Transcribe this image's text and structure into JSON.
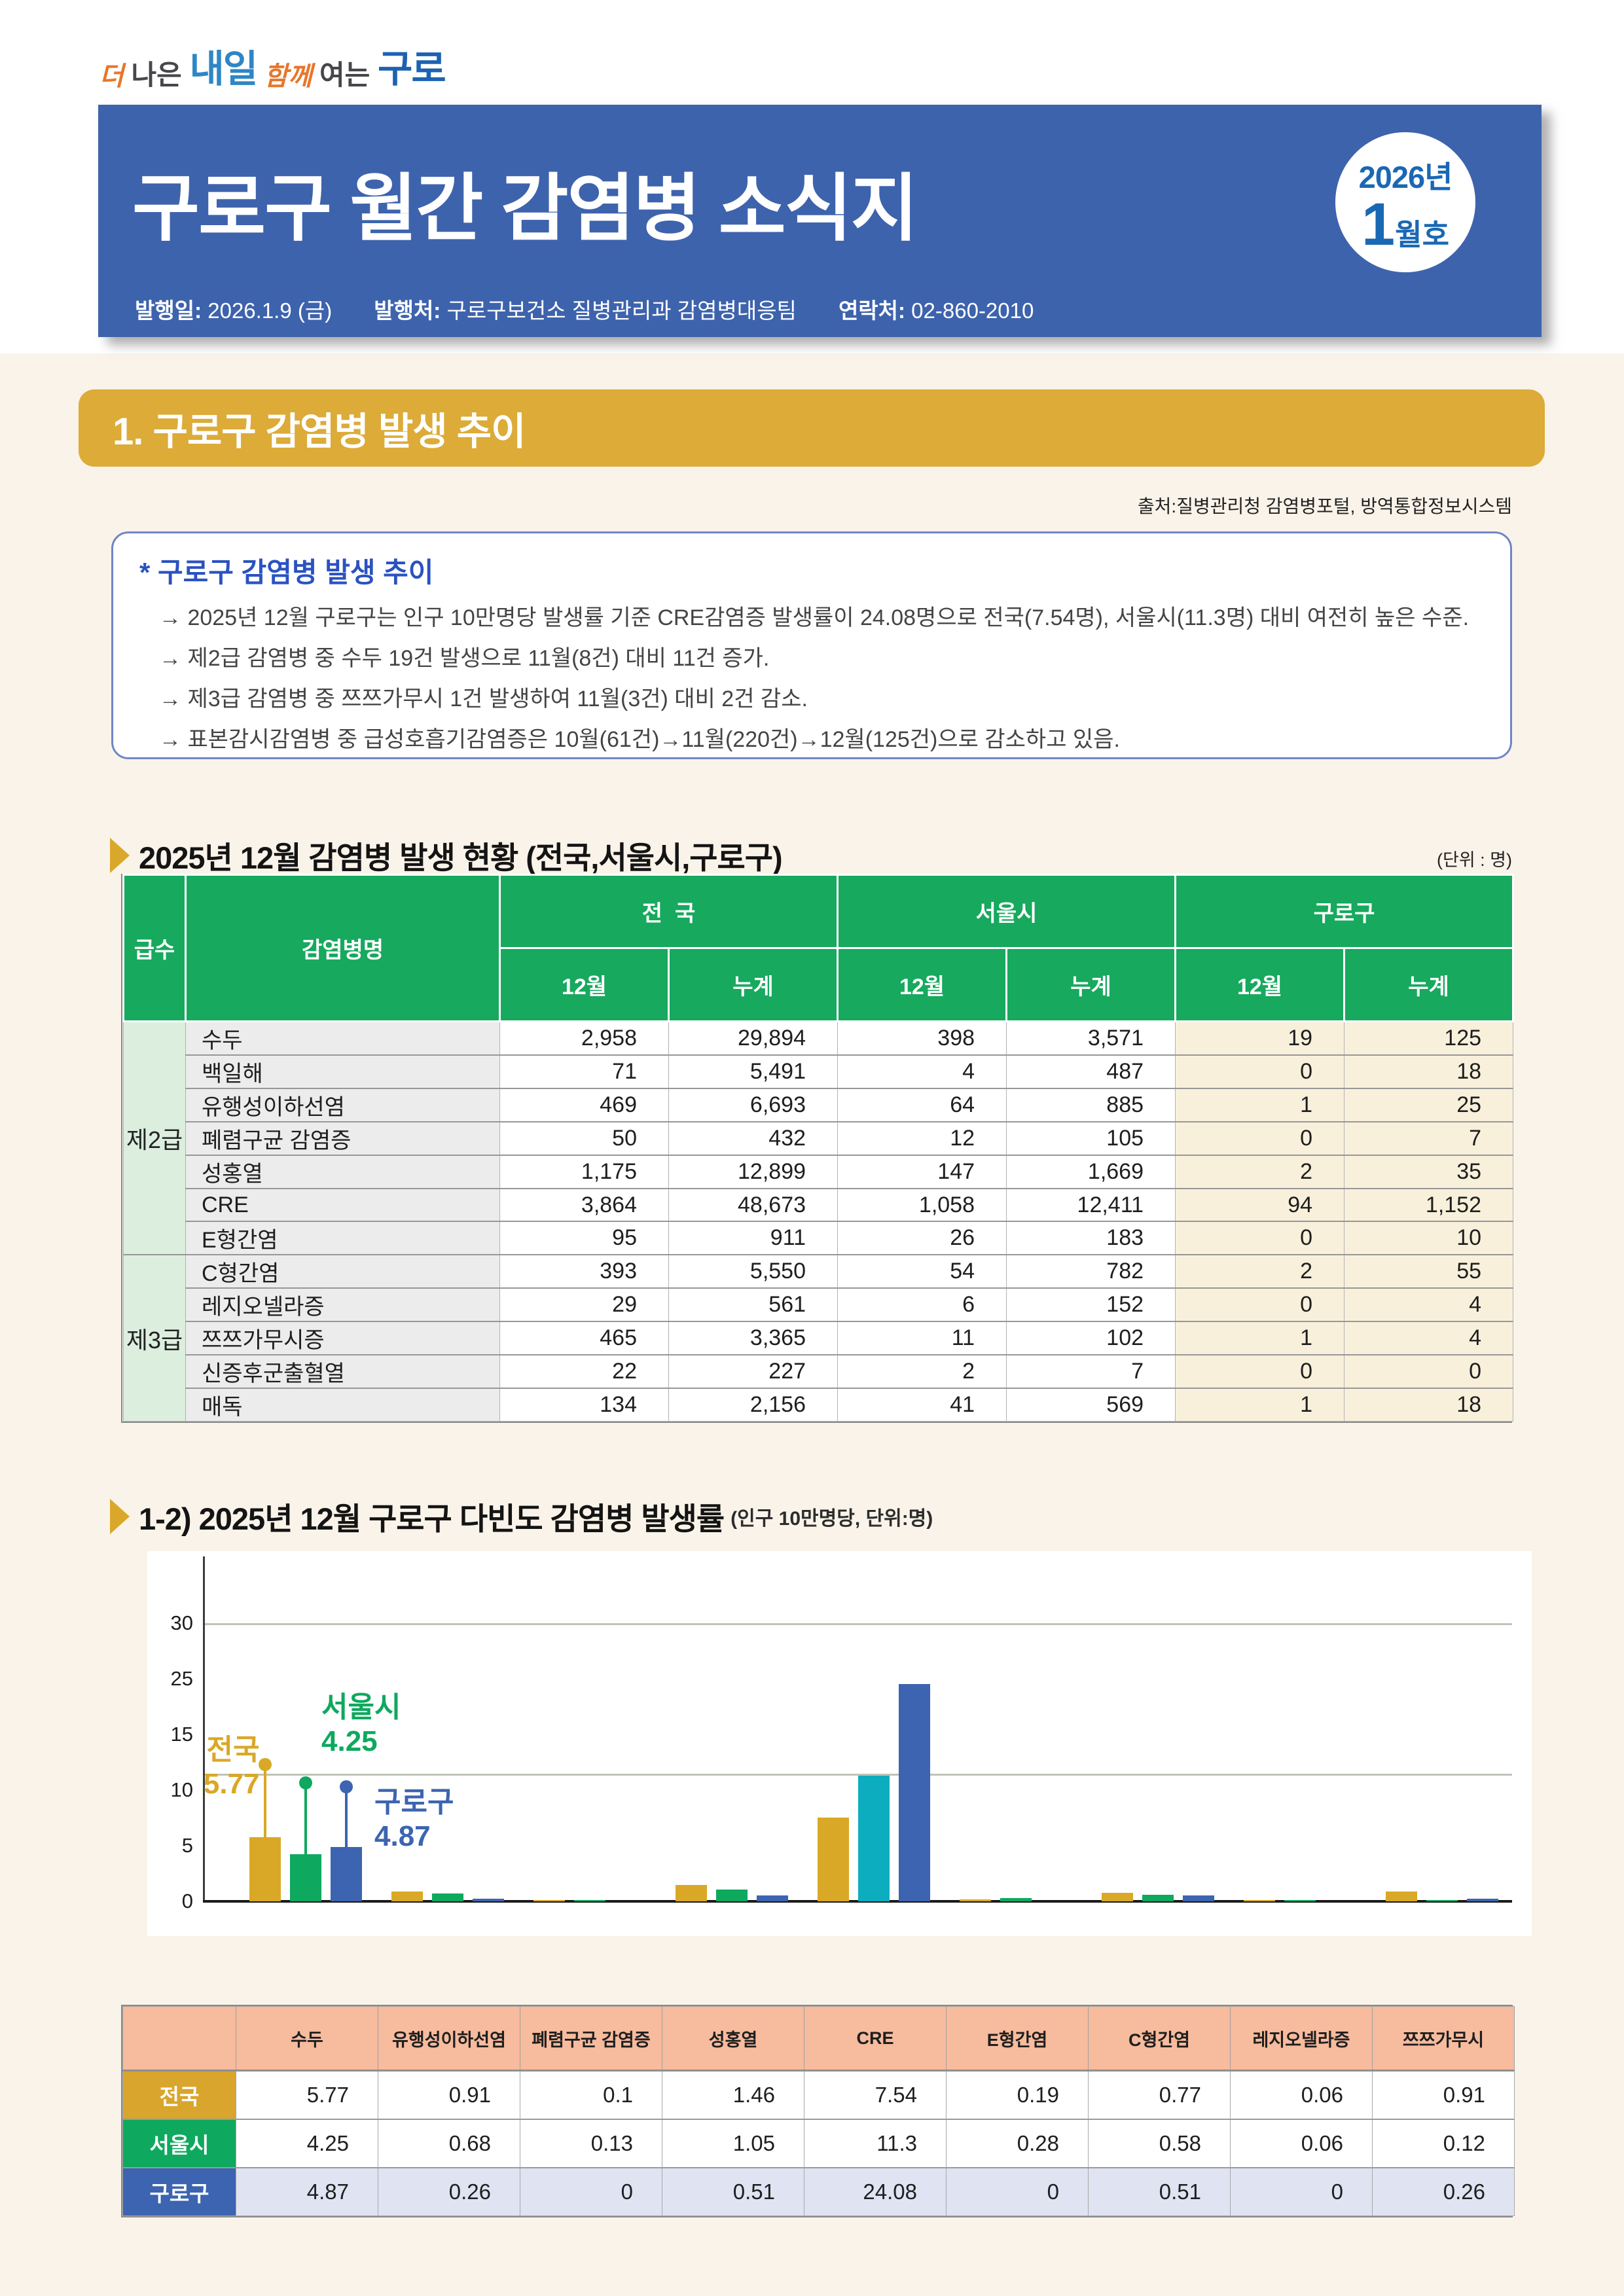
{
  "logo": {
    "parts": [
      {
        "text": "더",
        "style": "l-orange"
      },
      {
        "text": " 나은 ",
        "style": "l-gray"
      },
      {
        "text": "내일",
        "style": "l-blue"
      },
      {
        "text": " 함께 ",
        "style": "l-orange"
      },
      {
        "text": "여는 ",
        "style": "l-gray"
      },
      {
        "text": "구로",
        "style": "l-blue2"
      }
    ]
  },
  "banner": {
    "title": "구로구 월간 감염병 소식지",
    "issue_year": "2026년",
    "issue_number": "1",
    "issue_suffix": "월호",
    "publication": [
      {
        "label": "발행일:",
        "value": " 2026.1.9 (금)"
      },
      {
        "label": "발행처:",
        "value": " 구로구보건소 질병관리과 감염병대응팀"
      },
      {
        "label": "연락처:",
        "value": " 02-860-2010"
      }
    ]
  },
  "section1": {
    "title": "1. 구로구 감염병 발생 추이",
    "source": "출처:질병관리청 감염병포털, 방역통합정보시스템"
  },
  "summary": {
    "title": "* 구로구 감염병 발생 추이",
    "bullets": [
      "→ 2025년 12월 구로구는 인구 10만명당 발생률 기준 CRE감염증 발생률이 24.08명으로 전국(7.54명), 서울시(11.3명) 대비 여전히 높은 수준.",
      "→ 제2급 감염병 중 수두 19건 발생으로 11월(8건) 대비 11건 증가.",
      "→ 제3급 감염병 중 쯔쯔가무시 1건 발생하여 11월(3건) 대비 2건 감소.",
      "→ 표본감시감염병 중 급성호흡기감염증은 10월(61건)→11월(220건)→12월(125건)으로 감소하고 있음."
    ]
  },
  "main_table": {
    "title": "2025년 12월 감염병 발생 현황 (전국,서울시,구로구)",
    "unit": "(단위 : 명)",
    "col_headers": {
      "grade": "급수",
      "disease": "감염병명",
      "groups": [
        "전  국",
        "서울시",
        "구로구"
      ],
      "sub": [
        "12월",
        "누계"
      ]
    },
    "groups": [
      {
        "label": "제2급",
        "rows": [
          {
            "name": "수두",
            "values": [
              "2,958",
              "29,894",
              "398",
              "3,571",
              "19",
              "125"
            ]
          },
          {
            "name": "백일해",
            "values": [
              "71",
              "5,491",
              "4",
              "487",
              "0",
              "18"
            ]
          },
          {
            "name": "유행성이하선염",
            "values": [
              "469",
              "6,693",
              "64",
              "885",
              "1",
              "25"
            ]
          },
          {
            "name": "폐렴구균 감염증",
            "values": [
              "50",
              "432",
              "12",
              "105",
              "0",
              "7"
            ]
          },
          {
            "name": "성홍열",
            "values": [
              "1,175",
              "12,899",
              "147",
              "1,669",
              "2",
              "35"
            ]
          },
          {
            "name": "CRE",
            "values": [
              "3,864",
              "48,673",
              "1,058",
              "12,411",
              "94",
              "1,152"
            ]
          },
          {
            "name": "E형간염",
            "values": [
              "95",
              "911",
              "26",
              "183",
              "0",
              "10"
            ]
          }
        ]
      },
      {
        "label": "제3급",
        "rows": [
          {
            "name": "C형간염",
            "values": [
              "393",
              "5,550",
              "54",
              "782",
              "2",
              "55"
            ]
          },
          {
            "name": "레지오넬라증",
            "values": [
              "29",
              "561",
              "6",
              "152",
              "0",
              "4"
            ]
          },
          {
            "name": "쯔쯔가무시증",
            "values": [
              "465",
              "3,365",
              "11",
              "102",
              "1",
              "4"
            ]
          },
          {
            "name": "신증후군출혈열",
            "values": [
              "22",
              "227",
              "2",
              "7",
              "0",
              "0"
            ]
          },
          {
            "name": "매독",
            "values": [
              "134",
              "2,156",
              "41",
              "569",
              "1",
              "18"
            ]
          }
        ]
      }
    ]
  },
  "chart_data": {
    "type": "bar",
    "title": "1-2) 2025년 12월 구로구 다빈도 감염병 발생률",
    "unit_note": "(인구 10만명당, 단위:명)",
    "categories": [
      "수두",
      "유행성이하선염",
      "폐렴구균 감염증",
      "성홍열",
      "CRE",
      "E형간염",
      "C형간염",
      "레지오넬라증",
      "쯔쯔가무시"
    ],
    "series": [
      {
        "name": "전국",
        "color": "#d9a826",
        "values": [
          5.77,
          0.91,
          0.1,
          1.46,
          7.54,
          0.19,
          0.77,
          0.06,
          0.91
        ]
      },
      {
        "name": "서울시",
        "color": "#0ea95e",
        "cre_color": "#0cadbe",
        "values": [
          4.25,
          0.68,
          0.13,
          1.05,
          11.3,
          0.28,
          0.58,
          0.06,
          0.12
        ]
      },
      {
        "name": "구로구",
        "color": "#3c64b0",
        "values": [
          4.87,
          0.26,
          0,
          0.51,
          24.08,
          0,
          0.51,
          0,
          0.26
        ]
      }
    ],
    "y_ticks": [
      0,
      5,
      10,
      15,
      25,
      30
    ],
    "ylim": [
      0,
      30
    ],
    "grid": "partial-horizontal",
    "legend_position": "annotations-on-first-group",
    "annotations": [
      {
        "series": "전국",
        "text": "전국",
        "value": "5.77",
        "color": "#d9a826"
      },
      {
        "series": "서울시",
        "text": "서울시",
        "value": "4.25",
        "color": "#0ea95e"
      },
      {
        "series": "구로구",
        "text": "구로구",
        "value": "4.87",
        "color": "#3c64b0"
      }
    ]
  },
  "rate_table": {
    "col_headers": [
      "수두",
      "유행성이하선염",
      "폐렴구균 감염증",
      "성홍열",
      "CRE",
      "E형간염",
      "C형간염",
      "레지오넬라증",
      "쯔쯔가무시"
    ],
    "rows": [
      {
        "label": "전국",
        "label_color": "#d9a52c",
        "values": [
          "5.77",
          "0.91",
          "0.1",
          "1.46",
          "7.54",
          "0.19",
          "0.77",
          "0.06",
          "0.91"
        ]
      },
      {
        "label": "서울시",
        "label_color": "#0ea95e",
        "values": [
          "4.25",
          "0.68",
          "0.13",
          "1.05",
          "11.3",
          "0.28",
          "0.58",
          "0.06",
          "0.12"
        ]
      },
      {
        "label": "구로구",
        "label_color": "#3c64b0",
        "values": [
          "4.87",
          "0.26",
          "0",
          "0.51",
          "24.08",
          "0",
          "0.51",
          "0",
          "0.26"
        ]
      }
    ]
  }
}
